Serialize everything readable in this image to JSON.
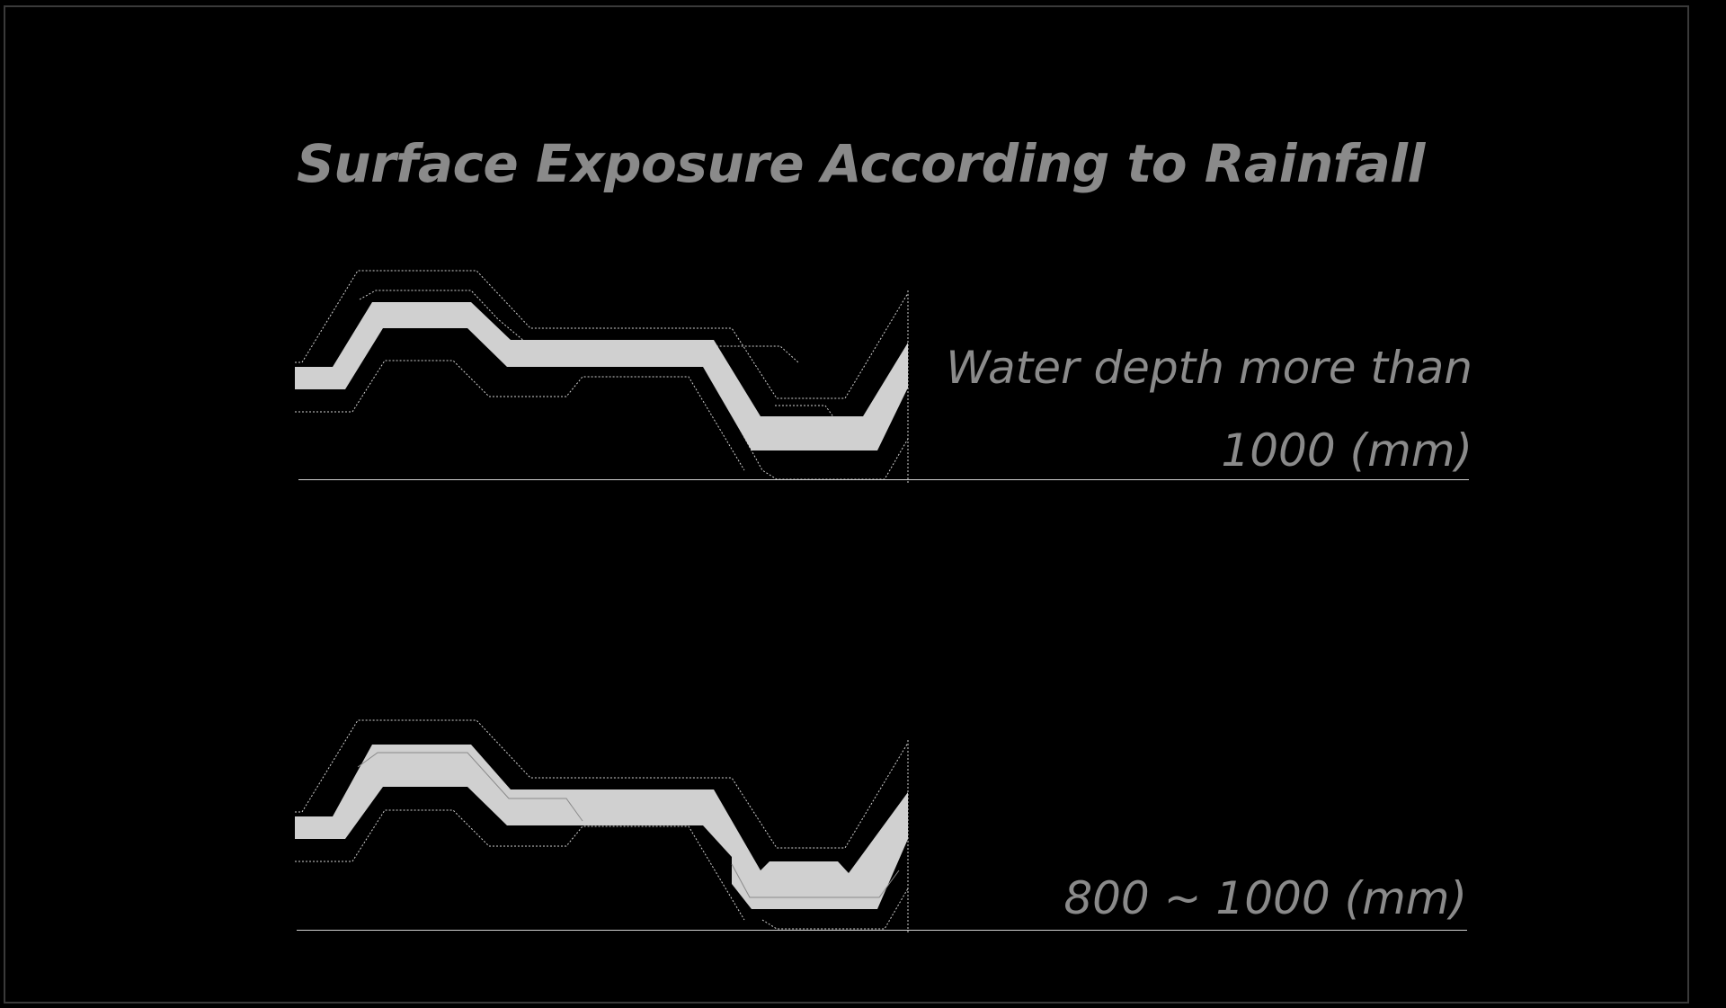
{
  "title": "Surface Exposure According to Rainfall",
  "panels": [
    {
      "label_line1": "Water depth more than",
      "label_line2": "1000 (mm)"
    },
    {
      "label_line1": "",
      "label_line2": "800 ~ 1000 (mm)"
    }
  ],
  "colors": {
    "background": "#000000",
    "text": "#8a8a8a",
    "surface_fill": "#d0d0d0",
    "contour": "#cfcfcf"
  }
}
